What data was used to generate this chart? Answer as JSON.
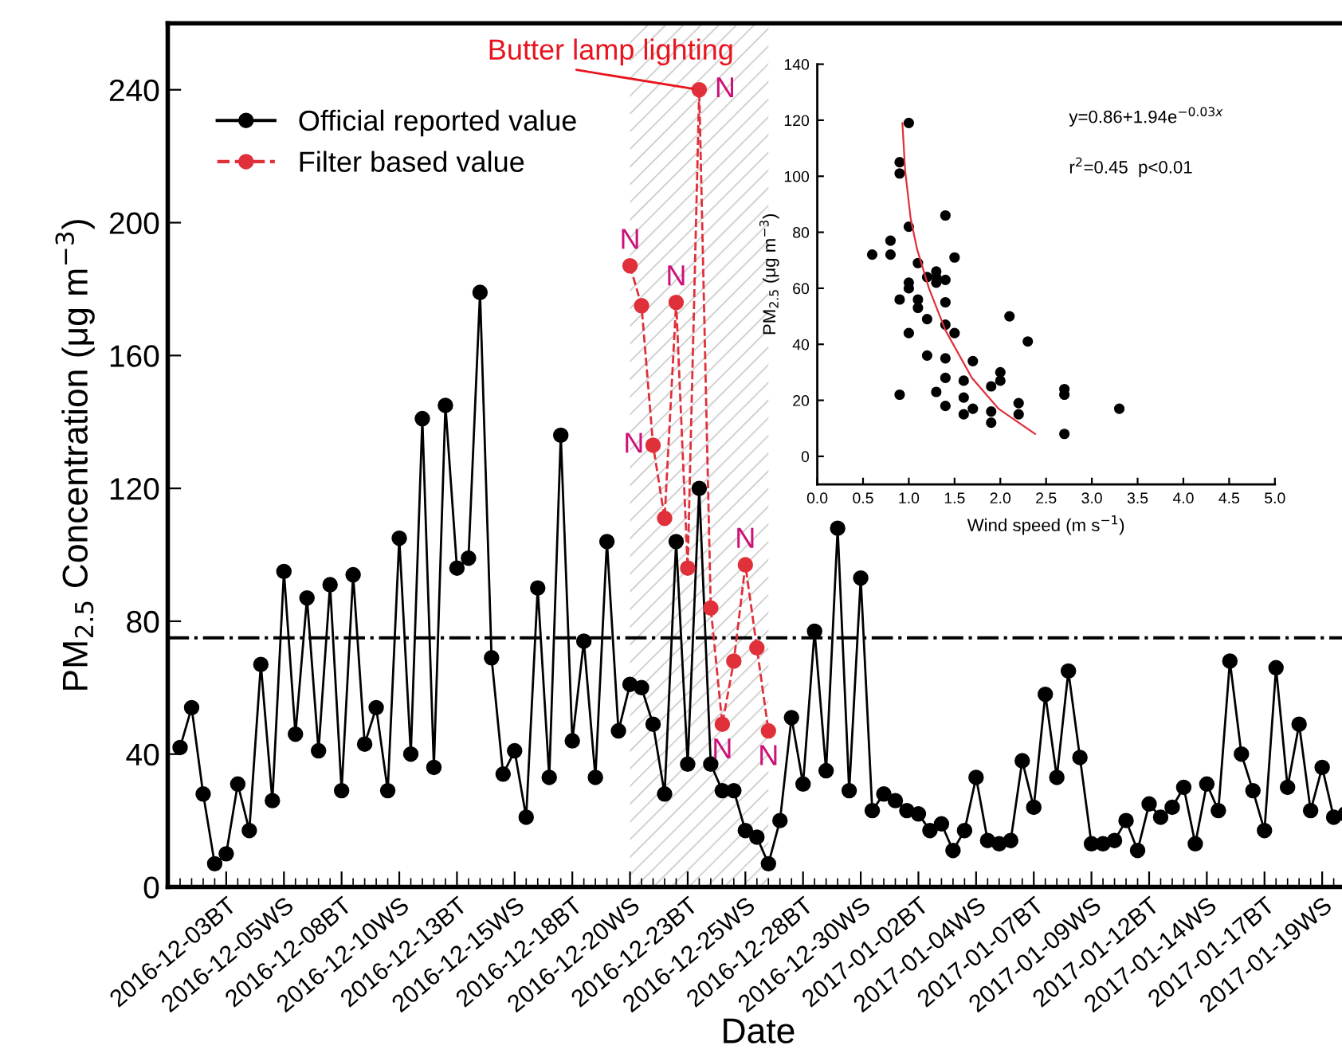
{
  "chart_data": [
    {
      "type": "line",
      "xlabel": "Date",
      "ylabel": "PM$_{2.5}$ Concentration (μg m$^{−3}$)",
      "categories": [
        null,
        null,
        null,
        null,
        "2016-12-03BT",
        null,
        null,
        null,
        null,
        "2016-12-05WS",
        null,
        null,
        null,
        null,
        "2016-12-08BT",
        null,
        null,
        null,
        null,
        "2016-12-10WS",
        null,
        null,
        null,
        null,
        "2016-12-13BT",
        null,
        null,
        null,
        null,
        "2016-12-15WS",
        null,
        null,
        null,
        null,
        "2016-12-18BT",
        null,
        null,
        null,
        null,
        "2016-12-20WS",
        null,
        null,
        null,
        null,
        "2016-12-23BT",
        null,
        null,
        null,
        null,
        "2016-12-25WS",
        null,
        null,
        null,
        null,
        "2016-12-28BT",
        null,
        null,
        null,
        null,
        "2016-12-30WS",
        null,
        null,
        null,
        null,
        "2017-01-02BT",
        null,
        null,
        null,
        null,
        "2017-01-04WS",
        null,
        null,
        null,
        null,
        "2017-01-07BT",
        null,
        null,
        null,
        null,
        "2017-01-09WS",
        null,
        null,
        null,
        null,
        "2017-01-12BT",
        null,
        null,
        null,
        null,
        "2017-01-14WS",
        null,
        null,
        null,
        null,
        "2017-01-17BT",
        null,
        null,
        null,
        null,
        "2017-01-19WS",
        null,
        null
      ],
      "series": [
        {
          "name": "Official reported value",
          "color": "#000000",
          "line_style": "solid",
          "values": [
            42,
            54,
            28,
            7,
            10,
            31,
            17,
            67,
            26,
            95,
            46,
            87,
            41,
            91,
            29,
            94,
            43,
            54,
            29,
            105,
            40,
            141,
            36,
            145,
            96,
            99,
            179,
            69,
            34,
            41,
            21,
            90,
            33,
            136,
            44,
            74,
            33,
            104,
            47,
            61,
            60,
            49,
            28,
            104,
            37,
            120,
            37,
            29,
            29,
            17,
            15,
            7,
            20,
            51,
            31,
            77,
            35,
            108,
            29,
            93,
            23,
            28,
            26,
            23,
            22,
            17,
            19,
            11,
            17,
            33,
            14,
            13,
            14,
            38,
            24,
            58,
            33,
            65,
            39,
            13,
            13,
            14,
            20,
            11,
            25,
            21,
            24,
            30,
            13,
            31,
            23,
            68,
            40,
            29,
            17,
            66,
            30,
            49,
            23,
            36,
            21,
            22
          ]
        },
        {
          "name": "Filter based value",
          "color": "#e0303a",
          "line_style": "dashed",
          "values": [
            null,
            null,
            null,
            null,
            null,
            null,
            null,
            null,
            null,
            null,
            null,
            null,
            null,
            null,
            null,
            null,
            null,
            null,
            null,
            null,
            null,
            null,
            null,
            null,
            null,
            null,
            null,
            null,
            null,
            null,
            null,
            null,
            null,
            null,
            null,
            null,
            null,
            null,
            null,
            187,
            175,
            133,
            111,
            176,
            96,
            240,
            84,
            49,
            68,
            97,
            72,
            47,
            null,
            null,
            null,
            null,
            null,
            null,
            null,
            null,
            null,
            null,
            null,
            null,
            null,
            null,
            null,
            null,
            null,
            null,
            null,
            null,
            null,
            null,
            null,
            null,
            null,
            null,
            null,
            null,
            null,
            null,
            null,
            null,
            null,
            null,
            null,
            null,
            null,
            null,
            null,
            null,
            null,
            null,
            null,
            null,
            null,
            null,
            null,
            null,
            null,
            null
          ],
          "value_labels": [
            null,
            null,
            null,
            null,
            null,
            null,
            null,
            null,
            null,
            null,
            null,
            null,
            null,
            null,
            null,
            null,
            null,
            null,
            null,
            null,
            null,
            null,
            null,
            null,
            null,
            null,
            null,
            null,
            null,
            null,
            null,
            null,
            null,
            null,
            null,
            null,
            null,
            null,
            null,
            "N",
            null,
            "N",
            null,
            "N",
            null,
            "N",
            null,
            "N",
            null,
            "N",
            null,
            "N",
            null,
            null,
            null,
            null,
            null,
            null,
            null,
            null,
            null,
            null,
            null,
            null,
            null,
            null,
            null,
            null,
            null,
            null,
            null,
            null,
            null,
            null,
            null,
            null,
            null,
            null,
            null,
            null,
            null,
            null,
            null,
            null,
            null,
            null,
            null,
            null,
            null,
            null,
            null,
            null,
            null,
            null,
            null,
            null,
            null,
            null,
            null,
            null,
            null,
            null
          ]
        }
      ],
      "ylim": [
        0,
        260
      ],
      "yticks": [
        0,
        40,
        80,
        120,
        160,
        200,
        240
      ],
      "marker": "circle",
      "legend": "top left",
      "ref_lines": [
        {
          "axis": "y",
          "value": 75,
          "line_style": "dashdot",
          "color": "#000000"
        }
      ],
      "annotations": [
        "Butter lamp lighting"
      ]
    },
    {
      "type": "scatter",
      "xlabel": "Wind speed (m s$^{−1}$)",
      "ylabel": "PM$_{2.5}$ (μg m$^{−3}$)",
      "series": [
        {
          "type": "scatter",
          "color": "#000000",
          "marker": "circle",
          "x": [
            0.6,
            0.8,
            0.8,
            0.9,
            0.9,
            0.9,
            0.9,
            1.0,
            1.0,
            1.0,
            1.0,
            1.0,
            1.1,
            1.1,
            1.1,
            1.2,
            1.2,
            1.2,
            1.3,
            1.3,
            1.3,
            1.3,
            1.4,
            1.4,
            1.4,
            1.4,
            1.4,
            1.4,
            1.4,
            1.5,
            1.5,
            1.6,
            1.6,
            1.6,
            1.7,
            1.7,
            1.9,
            1.9,
            1.9,
            2.0,
            2.0,
            2.1,
            2.2,
            2.2,
            2.3,
            2.7,
            2.7,
            2.7,
            3.3
          ],
          "values": [
            72,
            77,
            72,
            105,
            101,
            56,
            22,
            119,
            82,
            62,
            60,
            44,
            69,
            56,
            53,
            64,
            49,
            36,
            66,
            64,
            62,
            23,
            86,
            63,
            55,
            47,
            35,
            28,
            18,
            71,
            44,
            27,
            21,
            15,
            34,
            17,
            25,
            16,
            12,
            30,
            27,
            50,
            19,
            15,
            41,
            24,
            22,
            8,
            17
          ]
        },
        {
          "type": "line",
          "color": "#e0303a",
          "marker": "none",
          "x": [
            0.93,
            0.96,
            1.02,
            1.09,
            1.22,
            1.4,
            1.69,
            1.98,
            2.38
          ],
          "values": [
            119,
            102,
            85,
            74,
            60,
            45,
            28,
            17,
            8
          ]
        }
      ],
      "xlim": [
        0,
        5
      ],
      "ylim": [
        -10,
        140
      ],
      "xticks": [
        {
          "value": 0,
          "label": "0.0"
        },
        {
          "value": 0.5,
          "label": "0.5"
        },
        {
          "value": 1,
          "label": "1.0"
        },
        {
          "value": 1.5,
          "label": "1.5"
        },
        {
          "value": 2,
          "label": "2.0"
        },
        {
          "value": 2.5,
          "label": "2.5"
        },
        {
          "value": 3,
          "label": "3.0"
        },
        {
          "value": 3.5,
          "label": "3.5"
        },
        {
          "value": 4,
          "label": "4.0"
        },
        {
          "value": 4.5,
          "label": "4.5"
        },
        {
          "value": 5,
          "label": "5.0"
        }
      ],
      "yticks": [
        0,
        20,
        40,
        60,
        80,
        100,
        120,
        140
      ],
      "annotations": [
        "y=0.86+1.94e$^{−0.03x}$",
        "r$^{2}$=0.45  p<0.01"
      ]
    }
  ]
}
